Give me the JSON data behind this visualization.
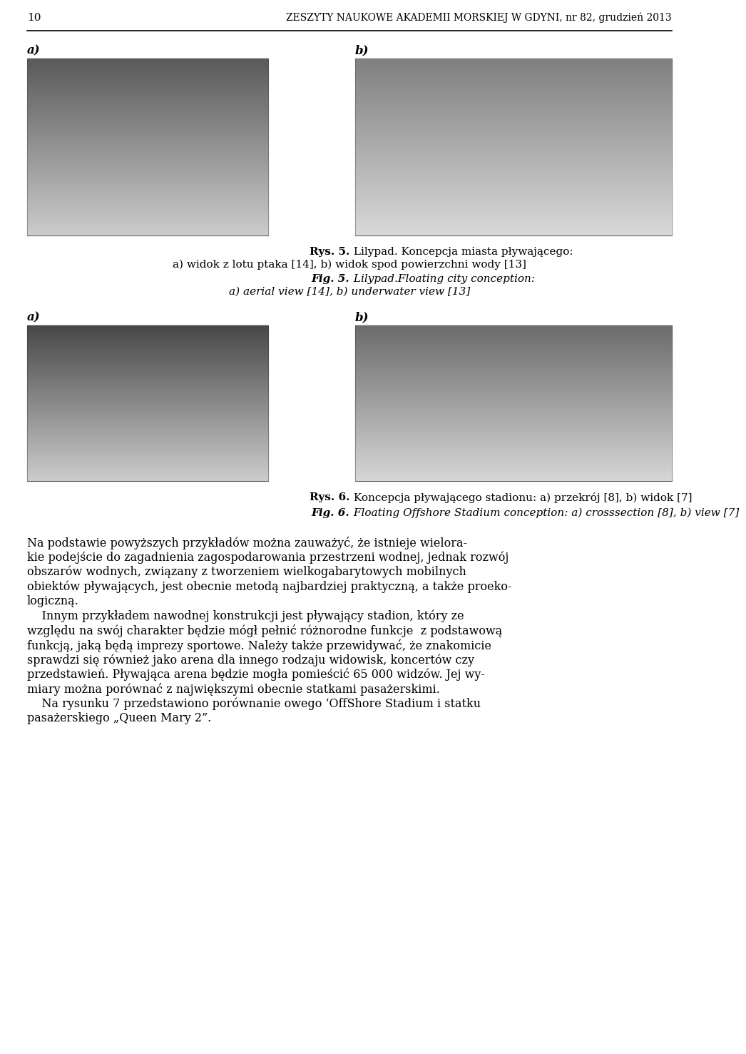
{
  "page_number": "10",
  "header_text": "ZESZYTY NAUKOWE AKADEMII MORSKIEJ W GDYNI, nr 82, grudzień 2013",
  "fig5_label_a": "a)",
  "fig5_label_b": "b)",
  "fig6_label_a": "a)",
  "fig6_label_b": "b)",
  "fig5_rys_bold": "Rys. 5.",
  "fig5_rest_pl_1": " Lilypad. Koncepcja miasta pływającego:",
  "fig5_rest_pl_2": "a) widok z lotu ptaka [14], b) widok spod powierzchni wody [13]",
  "fig5_fig_bold": "Fig. 5.",
  "fig5_rest_en_1": " Lilypad.Floating city conception:",
  "fig5_rest_en_2": "a) aerial view [14], b) underwater view [13]",
  "fig6_rys_bold": "Rys. 6.",
  "fig6_rest_pl": " Koncepcja pływającego stadionu: a) przekrój [8], b) widok [7]",
  "fig6_fig_bold": "Fig. 6.",
  "fig6_rest_en": " Floating Offshore Stadium conception: a) crosssection [8], b) view [7]",
  "body_line1": "Na podstawie powyższych przykładów można zauważyć, że istnieje wielora-",
  "body_line2": "kie podejście do zagadnienia zagospodarowania przestrzeni wodnej, jednak rozwój",
  "body_line3": "obszarów wodnych, związany z tworzeniem wielkogabarytowych mobilnych",
  "body_line4": "obiektów pływających, jest obecnie metodą najbardziej praktyczną, a także proeko-",
  "body_line5": "logiczną.",
  "body_line6": "    Innym przykładem nawodnej konstrukcji jest pływający stadion, który ze",
  "body_line7": "względu na swój charakter będzie mógł pełnić różnorodne funkcje  z podstawową",
  "body_line8": "funkcją, jaką będą imprezy sportowe. Należy także przewidywać, że znakomicie",
  "body_line9": "sprawdzi się również jako arena dla innego rodzaju widowisk, koncertów czy",
  "body_line10": "przedstawień. Pływająca arena będzie mogła pomieścić 65 000 widzów. Jej wy-",
  "body_line11": "miary można porównać z największymi obecnie statkami pasażerskimi.",
  "body_line12": "    Na rysunku 7 przedstawiono porównanie owego ’OffShore Stadium i statku",
  "body_line13": "pasażerskiego „Queen Mary 2”.",
  "background_color": "#ffffff",
  "text_color": "#000000",
  "line_color": "#000000"
}
